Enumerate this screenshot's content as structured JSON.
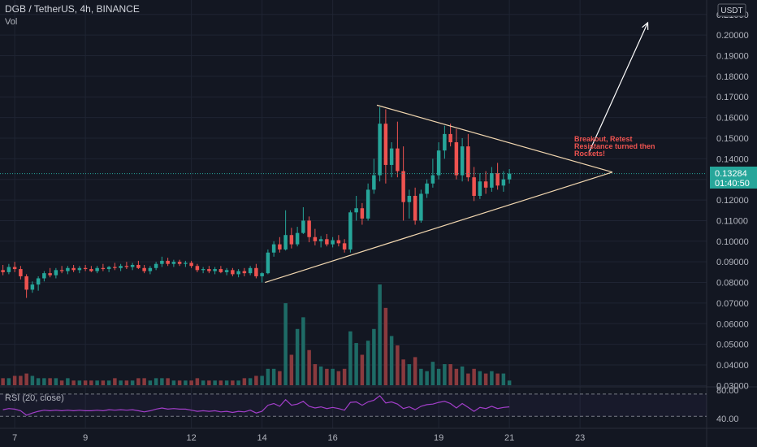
{
  "header": {
    "symbol": "DGB / TetherUS, 4h, BINANCE",
    "vol_label": "Vol"
  },
  "price_axis": {
    "currency": "USDT",
    "current_price": "0.13284",
    "countdown": "01:40:50"
  },
  "annotation": {
    "lines": [
      "Breakout, Retest",
      "Resistance turned then",
      "Rockets!"
    ]
  },
  "rsi": {
    "label": "RSI (20, close)",
    "upper_label": "80.00",
    "lower_label": "40.00"
  },
  "colors": {
    "background": "#131722",
    "up": "#26a69a",
    "down": "#ef5350",
    "vol_up": "#1e6b66",
    "vol_down": "#8a3a3e",
    "rsi_line": "#a23ec9",
    "triangle": "#f2d7b0",
    "arrow": "#ffffff",
    "annotation": "#ef5350",
    "price_line": "#26a69a"
  },
  "chart_data": {
    "type": "candlestick",
    "y_tick_labels": [
      "0.21000",
      "0.20000",
      "0.19000",
      "0.18000",
      "0.17000",
      "0.16000",
      "0.15000",
      "0.14000",
      "0.13000",
      "0.12000",
      "0.11000",
      "0.10000",
      "0.09000",
      "0.08000",
      "0.07000",
      "0.06000",
      "0.05000",
      "0.04000",
      "0.03000"
    ],
    "y_ticks": [
      0.21,
      0.2,
      0.19,
      0.18,
      0.17,
      0.16,
      0.15,
      0.14,
      0.13,
      0.12,
      0.11,
      0.1,
      0.09,
      0.08,
      0.07,
      0.06,
      0.05,
      0.04,
      0.03
    ],
    "ylim": [
      0.027,
      0.217
    ],
    "x_ticks": [
      {
        "label": "7",
        "bar": 2
      },
      {
        "label": "9",
        "bar": 14
      },
      {
        "label": "12",
        "bar": 32
      },
      {
        "label": "14",
        "bar": 44
      },
      {
        "label": "16",
        "bar": 56
      },
      {
        "label": "19",
        "bar": 74
      },
      {
        "label": "21",
        "bar": 86
      },
      {
        "label": "23",
        "bar": 98
      }
    ],
    "xlim": [
      0,
      120
    ],
    "candles": [
      {
        "o": 0.086,
        "h": 0.0885,
        "l": 0.0835,
        "c": 0.085,
        "v": 0.032
      },
      {
        "o": 0.085,
        "h": 0.089,
        "l": 0.084,
        "c": 0.0875,
        "v": 0.032
      },
      {
        "o": 0.0875,
        "h": 0.09,
        "l": 0.085,
        "c": 0.0865,
        "v": 0.033
      },
      {
        "o": 0.0865,
        "h": 0.088,
        "l": 0.0815,
        "c": 0.083,
        "v": 0.033
      },
      {
        "o": 0.083,
        "h": 0.084,
        "l": 0.0725,
        "c": 0.0765,
        "v": 0.034
      },
      {
        "o": 0.0765,
        "h": 0.0805,
        "l": 0.075,
        "c": 0.079,
        "v": 0.033
      },
      {
        "o": 0.079,
        "h": 0.083,
        "l": 0.076,
        "c": 0.082,
        "v": 0.032
      },
      {
        "o": 0.082,
        "h": 0.0855,
        "l": 0.0805,
        "c": 0.0845,
        "v": 0.032
      },
      {
        "o": 0.0845,
        "h": 0.087,
        "l": 0.0825,
        "c": 0.0835,
        "v": 0.032
      },
      {
        "o": 0.0835,
        "h": 0.087,
        "l": 0.082,
        "c": 0.086,
        "v": 0.032
      },
      {
        "o": 0.086,
        "h": 0.088,
        "l": 0.0845,
        "c": 0.0855,
        "v": 0.031
      },
      {
        "o": 0.0855,
        "h": 0.088,
        "l": 0.084,
        "c": 0.087,
        "v": 0.032
      },
      {
        "o": 0.087,
        "h": 0.0885,
        "l": 0.085,
        "c": 0.086,
        "v": 0.031
      },
      {
        "o": 0.086,
        "h": 0.088,
        "l": 0.0845,
        "c": 0.087,
        "v": 0.031
      },
      {
        "o": 0.087,
        "h": 0.0885,
        "l": 0.0855,
        "c": 0.0865,
        "v": 0.031
      },
      {
        "o": 0.0865,
        "h": 0.088,
        "l": 0.085,
        "c": 0.0855,
        "v": 0.031
      },
      {
        "o": 0.0855,
        "h": 0.088,
        "l": 0.0845,
        "c": 0.087,
        "v": 0.031
      },
      {
        "o": 0.087,
        "h": 0.089,
        "l": 0.0855,
        "c": 0.0865,
        "v": 0.031
      },
      {
        "o": 0.0865,
        "h": 0.088,
        "l": 0.085,
        "c": 0.0875,
        "v": 0.031
      },
      {
        "o": 0.0875,
        "h": 0.0895,
        "l": 0.086,
        "c": 0.087,
        "v": 0.032
      },
      {
        "o": 0.087,
        "h": 0.089,
        "l": 0.0855,
        "c": 0.088,
        "v": 0.031
      },
      {
        "o": 0.088,
        "h": 0.09,
        "l": 0.0865,
        "c": 0.0875,
        "v": 0.031
      },
      {
        "o": 0.0875,
        "h": 0.0895,
        "l": 0.086,
        "c": 0.0885,
        "v": 0.031
      },
      {
        "o": 0.0885,
        "h": 0.0905,
        "l": 0.0865,
        "c": 0.087,
        "v": 0.032
      },
      {
        "o": 0.087,
        "h": 0.0885,
        "l": 0.0845,
        "c": 0.0855,
        "v": 0.032
      },
      {
        "o": 0.0855,
        "h": 0.088,
        "l": 0.084,
        "c": 0.087,
        "v": 0.031
      },
      {
        "o": 0.087,
        "h": 0.09,
        "l": 0.086,
        "c": 0.089,
        "v": 0.032
      },
      {
        "o": 0.089,
        "h": 0.0925,
        "l": 0.0875,
        "c": 0.0905,
        "v": 0.032
      },
      {
        "o": 0.0905,
        "h": 0.092,
        "l": 0.088,
        "c": 0.089,
        "v": 0.032
      },
      {
        "o": 0.089,
        "h": 0.091,
        "l": 0.0875,
        "c": 0.09,
        "v": 0.031
      },
      {
        "o": 0.09,
        "h": 0.091,
        "l": 0.088,
        "c": 0.089,
        "v": 0.031
      },
      {
        "o": 0.089,
        "h": 0.0905,
        "l": 0.0875,
        "c": 0.0895,
        "v": 0.031
      },
      {
        "o": 0.0895,
        "h": 0.0905,
        "l": 0.087,
        "c": 0.088,
        "v": 0.031
      },
      {
        "o": 0.088,
        "h": 0.089,
        "l": 0.085,
        "c": 0.086,
        "v": 0.032
      },
      {
        "o": 0.086,
        "h": 0.0875,
        "l": 0.0845,
        "c": 0.0865,
        "v": 0.031
      },
      {
        "o": 0.0865,
        "h": 0.088,
        "l": 0.0845,
        "c": 0.0855,
        "v": 0.031
      },
      {
        "o": 0.0855,
        "h": 0.0875,
        "l": 0.084,
        "c": 0.0865,
        "v": 0.031
      },
      {
        "o": 0.0865,
        "h": 0.088,
        "l": 0.0845,
        "c": 0.085,
        "v": 0.031
      },
      {
        "o": 0.085,
        "h": 0.087,
        "l": 0.0835,
        "c": 0.086,
        "v": 0.031
      },
      {
        "o": 0.086,
        "h": 0.087,
        "l": 0.083,
        "c": 0.084,
        "v": 0.031
      },
      {
        "o": 0.084,
        "h": 0.0865,
        "l": 0.0825,
        "c": 0.0855,
        "v": 0.031
      },
      {
        "o": 0.0855,
        "h": 0.087,
        "l": 0.083,
        "c": 0.0845,
        "v": 0.032
      },
      {
        "o": 0.0845,
        "h": 0.088,
        "l": 0.0835,
        "c": 0.087,
        "v": 0.032
      },
      {
        "o": 0.087,
        "h": 0.089,
        "l": 0.082,
        "c": 0.083,
        "v": 0.033
      },
      {
        "o": 0.083,
        "h": 0.085,
        "l": 0.08,
        "c": 0.0845,
        "v": 0.033
      },
      {
        "o": 0.0845,
        "h": 0.096,
        "l": 0.084,
        "c": 0.0945,
        "v": 0.036
      },
      {
        "o": 0.0945,
        "h": 0.1,
        "l": 0.0925,
        "c": 0.0985,
        "v": 0.036
      },
      {
        "o": 0.0985,
        "h": 0.102,
        "l": 0.0945,
        "c": 0.096,
        "v": 0.035
      },
      {
        "o": 0.096,
        "h": 0.115,
        "l": 0.0955,
        "c": 0.103,
        "v": 0.064
      },
      {
        "o": 0.103,
        "h": 0.1065,
        "l": 0.0965,
        "c": 0.0985,
        "v": 0.042
      },
      {
        "o": 0.0985,
        "h": 0.107,
        "l": 0.0975,
        "c": 0.104,
        "v": 0.053
      },
      {
        "o": 0.104,
        "h": 0.1165,
        "l": 0.1035,
        "c": 0.11,
        "v": 0.058
      },
      {
        "o": 0.11,
        "h": 0.112,
        "l": 0.0995,
        "c": 0.102,
        "v": 0.044
      },
      {
        "o": 0.102,
        "h": 0.106,
        "l": 0.098,
        "c": 0.1,
        "v": 0.038
      },
      {
        "o": 0.1,
        "h": 0.1025,
        "l": 0.097,
        "c": 0.101,
        "v": 0.037
      },
      {
        "o": 0.101,
        "h": 0.1035,
        "l": 0.0975,
        "c": 0.0985,
        "v": 0.036
      },
      {
        "o": 0.0985,
        "h": 0.102,
        "l": 0.097,
        "c": 0.1005,
        "v": 0.036
      },
      {
        "o": 0.1005,
        "h": 0.103,
        "l": 0.0975,
        "c": 0.099,
        "v": 0.035
      },
      {
        "o": 0.099,
        "h": 0.101,
        "l": 0.0945,
        "c": 0.096,
        "v": 0.036
      },
      {
        "o": 0.096,
        "h": 0.115,
        "l": 0.0945,
        "c": 0.114,
        "v": 0.052
      },
      {
        "o": 0.114,
        "h": 0.122,
        "l": 0.11,
        "c": 0.116,
        "v": 0.047
      },
      {
        "o": 0.116,
        "h": 0.1185,
        "l": 0.108,
        "c": 0.111,
        "v": 0.042
      },
      {
        "o": 0.111,
        "h": 0.128,
        "l": 0.11,
        "c": 0.125,
        "v": 0.048
      },
      {
        "o": 0.125,
        "h": 0.14,
        "l": 0.123,
        "c": 0.132,
        "v": 0.053
      },
      {
        "o": 0.132,
        "h": 0.165,
        "l": 0.129,
        "c": 0.157,
        "v": 0.072
      },
      {
        "o": 0.157,
        "h": 0.164,
        "l": 0.128,
        "c": 0.137,
        "v": 0.062
      },
      {
        "o": 0.137,
        "h": 0.148,
        "l": 0.131,
        "c": 0.145,
        "v": 0.05
      },
      {
        "o": 0.145,
        "h": 0.158,
        "l": 0.131,
        "c": 0.134,
        "v": 0.046
      },
      {
        "o": 0.134,
        "h": 0.146,
        "l": 0.11,
        "c": 0.119,
        "v": 0.04
      },
      {
        "o": 0.119,
        "h": 0.125,
        "l": 0.111,
        "c": 0.122,
        "v": 0.038
      },
      {
        "o": 0.122,
        "h": 0.126,
        "l": 0.108,
        "c": 0.11,
        "v": 0.041
      },
      {
        "o": 0.11,
        "h": 0.125,
        "l": 0.109,
        "c": 0.123,
        "v": 0.036
      },
      {
        "o": 0.123,
        "h": 0.13,
        "l": 0.121,
        "c": 0.128,
        "v": 0.035
      },
      {
        "o": 0.128,
        "h": 0.14,
        "l": 0.126,
        "c": 0.132,
        "v": 0.039
      },
      {
        "o": 0.132,
        "h": 0.148,
        "l": 0.13,
        "c": 0.144,
        "v": 0.036
      },
      {
        "o": 0.144,
        "h": 0.156,
        "l": 0.14,
        "c": 0.152,
        "v": 0.038
      },
      {
        "o": 0.152,
        "h": 0.157,
        "l": 0.146,
        "c": 0.148,
        "v": 0.038
      },
      {
        "o": 0.148,
        "h": 0.1545,
        "l": 0.13,
        "c": 0.132,
        "v": 0.036
      },
      {
        "o": 0.132,
        "h": 0.15,
        "l": 0.129,
        "c": 0.146,
        "v": 0.037
      },
      {
        "o": 0.146,
        "h": 0.152,
        "l": 0.129,
        "c": 0.131,
        "v": 0.034
      },
      {
        "o": 0.131,
        "h": 0.136,
        "l": 0.1195,
        "c": 0.122,
        "v": 0.036
      },
      {
        "o": 0.122,
        "h": 0.133,
        "l": 0.1205,
        "c": 0.129,
        "v": 0.035
      },
      {
        "o": 0.129,
        "h": 0.134,
        "l": 0.123,
        "c": 0.126,
        "v": 0.034
      },
      {
        "o": 0.126,
        "h": 0.136,
        "l": 0.124,
        "c": 0.133,
        "v": 0.035
      },
      {
        "o": 0.133,
        "h": 0.138,
        "l": 0.125,
        "c": 0.127,
        "v": 0.034
      },
      {
        "o": 0.127,
        "h": 0.134,
        "l": 0.124,
        "c": 0.13,
        "v": 0.034
      },
      {
        "o": 0.13,
        "h": 0.135,
        "l": 0.128,
        "c": 0.1328,
        "v": 0.031
      }
    ],
    "triangle": {
      "apex": {
        "bar": 104,
        "price": 0.1335
      },
      "top_start": {
        "bar": 64,
        "price": 0.166
      },
      "bottom_start": {
        "bar": 45,
        "price": 0.08
      }
    },
    "breakout_arrow": {
      "from": {
        "bar": 100,
        "price": 0.143
      },
      "to": {
        "bar": 110,
        "price": 0.206
      }
    },
    "rsi_values": [
      52,
      54,
      53,
      50,
      42,
      46,
      49,
      51,
      50,
      51,
      50,
      51,
      50,
      51,
      50,
      50,
      51,
      50,
      52,
      51,
      52,
      51,
      52,
      50,
      48,
      50,
      53,
      55,
      53,
      54,
      53,
      53,
      51,
      49,
      50,
      49,
      50,
      48,
      49,
      47,
      49,
      48,
      51,
      46,
      49,
      60,
      63,
      58,
      70,
      60,
      62,
      67,
      58,
      55,
      57,
      54,
      56,
      54,
      51,
      65,
      66,
      60,
      66,
      69,
      77,
      64,
      66,
      62,
      54,
      57,
      52,
      58,
      61,
      62,
      65,
      67,
      63,
      55,
      63,
      56,
      49,
      56,
      54,
      58,
      54,
      56,
      57
    ]
  }
}
